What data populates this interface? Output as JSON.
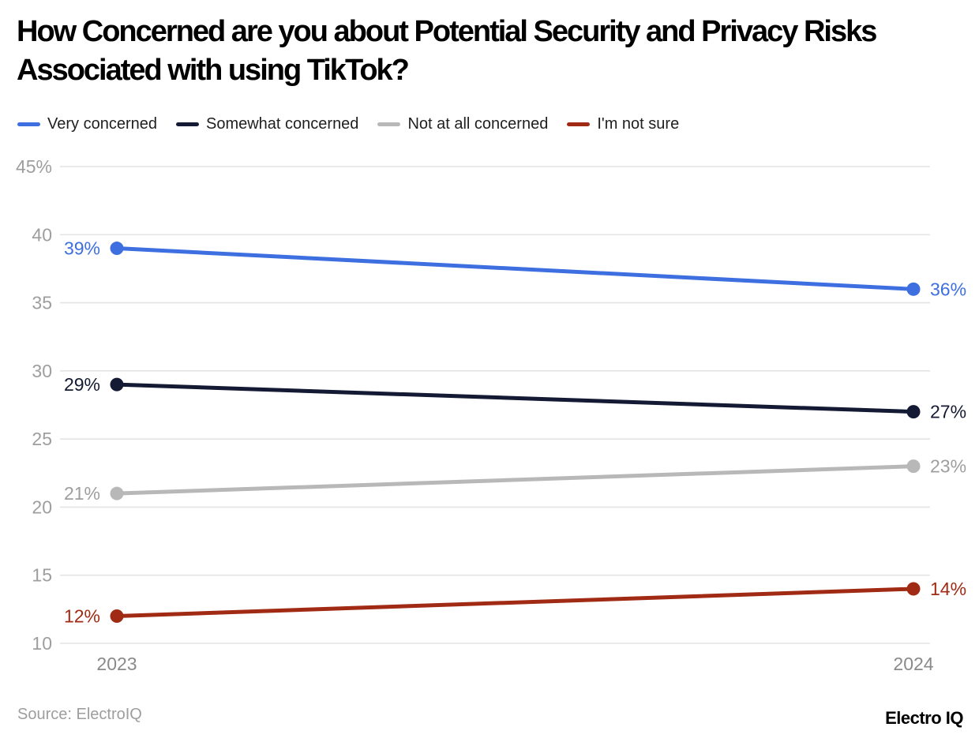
{
  "title": "How Concerned are you about Potential Security and Privacy Risks Associated with using TikTok?",
  "source": "Source: ElectroIQ",
  "brand": "Electro IQ",
  "chart_data": {
    "type": "line",
    "x": [
      "2023",
      "2024"
    ],
    "series": [
      {
        "name": "Very concerned",
        "values": [
          39,
          36
        ],
        "color": "#3D6FE0",
        "label_color": "#3D6FE0"
      },
      {
        "name": "Somewhat concerned",
        "values": [
          29,
          27
        ],
        "color": "#141A33",
        "label_color": "#141A33"
      },
      {
        "name": "Not at all concerned",
        "values": [
          21,
          23
        ],
        "color": "#B8B8B8",
        "label_color": "#9E9E9E"
      },
      {
        "name": "I'm not sure",
        "values": [
          12,
          14
        ],
        "color": "#A12A14",
        "label_color": "#A12A14"
      }
    ],
    "point_labels": [
      [
        "39%",
        "36%"
      ],
      [
        "29%",
        "27%"
      ],
      [
        "21%",
        "23%"
      ],
      [
        "12%",
        "14%"
      ]
    ],
    "ylim": [
      10,
      45
    ],
    "yticks": [
      45,
      40,
      35,
      30,
      25,
      20,
      15,
      10
    ],
    "ytick_labels": [
      "45%",
      "40",
      "35",
      "30",
      "25",
      "20",
      "15",
      "10"
    ],
    "grid": true,
    "legend_position": "top"
  }
}
